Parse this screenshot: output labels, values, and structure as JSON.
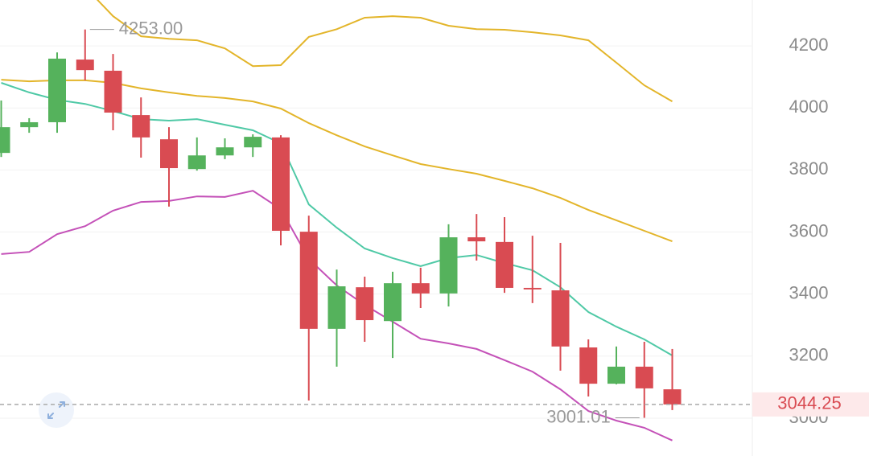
{
  "chart_data": {
    "type": "candlestick",
    "open": [
      3855,
      3938,
      3954,
      4156,
      4120,
      3977,
      3899,
      3803,
      3847,
      3873,
      3905,
      3601,
      3288,
      3422,
      3313,
      3435,
      3402,
      3583,
      3568,
      3420,
      3412,
      3228,
      3111,
      3166,
      3093
    ],
    "high": [
      4024,
      3967,
      4179,
      4253,
      4174,
      4034,
      3938,
      3905,
      3902,
      3915,
      3912,
      3653,
      3479,
      3456,
      3472,
      3485,
      3625,
      3658,
      3648,
      3588,
      3565,
      3254,
      3231,
      3246,
      3223
    ],
    "low": [
      3842,
      3920,
      3920,
      4089,
      3928,
      3840,
      3682,
      3798,
      3835,
      3842,
      3557,
      3057,
      3166,
      3246,
      3194,
      3355,
      3360,
      3508,
      3404,
      3371,
      3153,
      3070,
      3109,
      3001.01,
      3026
    ],
    "close": [
      3938,
      3954,
      4159,
      4122,
      3985,
      3905,
      3806,
      3847,
      3873,
      3907,
      3604,
      3288,
      3425,
      3316,
      3435,
      3402,
      3583,
      3570,
      3420,
      3415,
      3231,
      3111,
      3166,
      3096,
      3044.25
    ],
    "up_color": "#55b25c",
    "down_color": "#d94b52",
    "lines": [
      {
        "color": "#e3b52a",
        "values": [
          null,
          null,
          null,
          4390,
          4296,
          4231,
          4223,
          4218,
          4192,
          4135,
          4138,
          4229,
          4254,
          4291,
          4296,
          4291,
          4265,
          4254,
          4252,
          4244,
          4234,
          4218,
          4146,
          4073,
          4021
        ]
      },
      {
        "color": "#e3b52a",
        "values": [
          4091,
          4086,
          4089,
          4089,
          4081,
          4063,
          4050,
          4039,
          4032,
          4021,
          3998,
          3951,
          3912,
          3876,
          3847,
          3819,
          3803,
          3788,
          3765,
          3741,
          3710,
          3671,
          3638,
          3604,
          3570
        ]
      },
      {
        "color": "#4fc9a6",
        "values": [
          4081,
          4050,
          4026,
          4013,
          3990,
          3964,
          3959,
          3964,
          3946,
          3928,
          3886,
          3689,
          3614,
          3547,
          3516,
          3490,
          3516,
          3526,
          3500,
          3477,
          3422,
          3342,
          3295,
          3254,
          3202
        ]
      },
      {
        "color": "#c451b8",
        "values": [
          3529,
          3536,
          3593,
          3619,
          3669,
          3697,
          3700,
          3715,
          3713,
          3733,
          3674,
          3513,
          3428,
          3365,
          3311,
          3256,
          3241,
          3223,
          3187,
          3150,
          3093,
          3023,
          2992,
          2969,
          2928
        ]
      }
    ],
    "ylim": [
      2878,
      4348
    ],
    "yticks": [
      3000,
      3200,
      3400,
      3600,
      3800,
      4000,
      4200
    ],
    "grid": true,
    "last_price": 3044.25,
    "high_marker": {
      "value": 4253,
      "label": "4253.00"
    },
    "low_marker": 3001.01
  }
}
